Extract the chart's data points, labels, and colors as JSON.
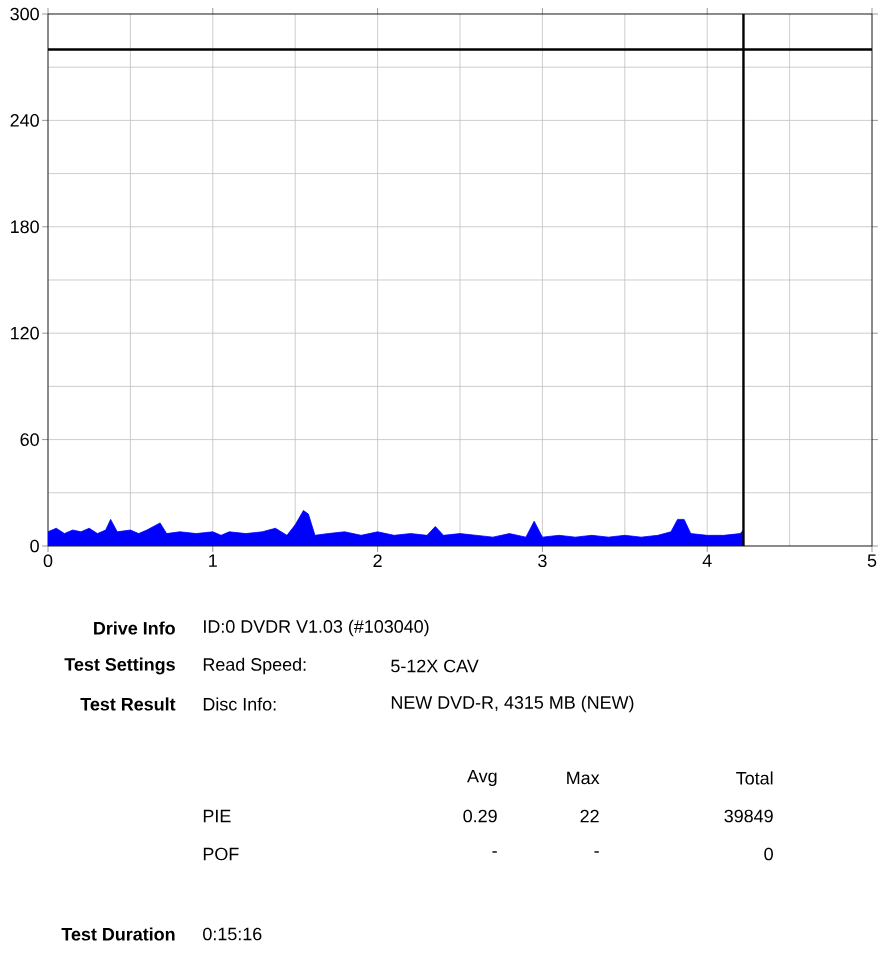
{
  "chart_data": {
    "type": "area",
    "x": [
      0,
      0.05,
      0.1,
      0.15,
      0.2,
      0.25,
      0.3,
      0.35,
      0.38,
      0.42,
      0.5,
      0.55,
      0.6,
      0.68,
      0.72,
      0.8,
      0.9,
      1.0,
      1.05,
      1.1,
      1.2,
      1.3,
      1.38,
      1.45,
      1.5,
      1.55,
      1.58,
      1.62,
      1.7,
      1.8,
      1.9,
      2.0,
      2.1,
      2.2,
      2.3,
      2.35,
      2.4,
      2.5,
      2.6,
      2.7,
      2.8,
      2.9,
      2.95,
      3.0,
      3.1,
      3.2,
      3.3,
      3.4,
      3.5,
      3.6,
      3.7,
      3.78,
      3.82,
      3.86,
      3.9,
      4.0,
      4.1,
      4.2,
      4.22
    ],
    "values": [
      8,
      10,
      7,
      9,
      8,
      10,
      7,
      9,
      15,
      8,
      9,
      7,
      9,
      13,
      7,
      8,
      7,
      8,
      6,
      8,
      7,
      8,
      10,
      6,
      12,
      20,
      18,
      6,
      7,
      8,
      6,
      8,
      6,
      7,
      6,
      11,
      6,
      7,
      6,
      5,
      7,
      5,
      14,
      5,
      6,
      5,
      6,
      5,
      6,
      5,
      6,
      8,
      15,
      15,
      7,
      6,
      6,
      7,
      9
    ],
    "color": "#0000ff",
    "xlim": [
      0,
      5
    ],
    "xticks": [
      0,
      1,
      2,
      3,
      4,
      5
    ],
    "ylim": [
      0,
      300
    ],
    "yticks": [
      0,
      60,
      120,
      180,
      240,
      300
    ],
    "grid": true,
    "ref_lines": [
      {
        "axis": "y",
        "value": 280,
        "color": "#000000"
      },
      {
        "axis": "x",
        "value": 4.22,
        "color": "#000000"
      }
    ],
    "annotations": [
      "Drive Info",
      "ID:0 DVDR V1.03 (#103040)",
      "Test Settings",
      "Read Speed:",
      "5-12X CAV",
      "Test Result",
      "Disc Info:",
      "NEW DVD-R, 4315 MB (NEW)",
      "Avg",
      "Max",
      "Total",
      "PIE",
      "0.29",
      "22",
      "39849",
      "POF",
      "-",
      "-",
      "0",
      "Test Duration",
      "0:15:16"
    ]
  }
}
